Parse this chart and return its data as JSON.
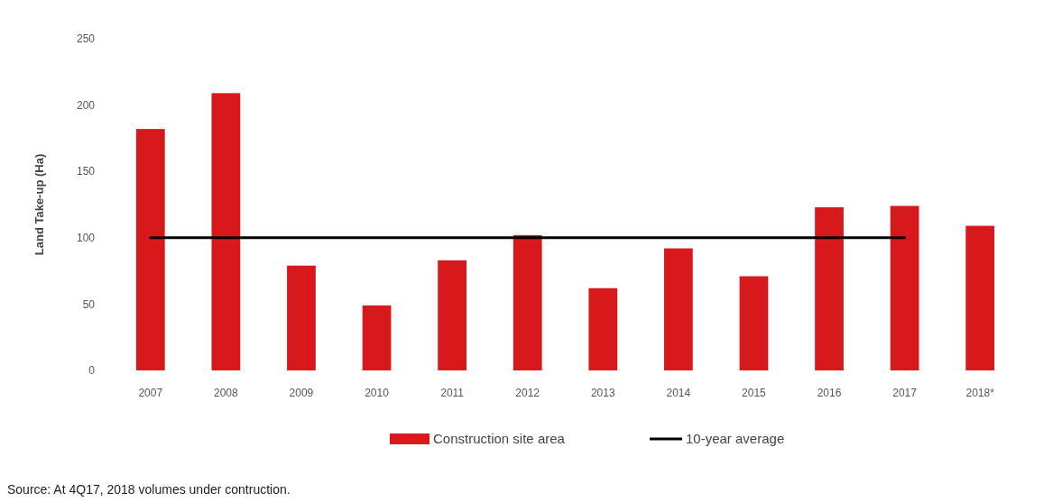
{
  "chart_data": {
    "type": "bar",
    "ylabel": "Land Take-up (Ha)",
    "categories": [
      "2007",
      "2008",
      "2009",
      "2010",
      "2011",
      "2012",
      "2013",
      "2014",
      "2015",
      "2016",
      "2017",
      "2018*"
    ],
    "series": [
      {
        "name": "Construction site area",
        "color": "#d7191c",
        "values": [
          182,
          209,
          79,
          49,
          83,
          102,
          62,
          92,
          71,
          123,
          124,
          109
        ]
      },
      {
        "name": "10-year average",
        "type": "line",
        "color": "#000000",
        "values": [
          100,
          100,
          100,
          100,
          100,
          100,
          100,
          100,
          100,
          100,
          100,
          null
        ]
      }
    ],
    "ylim": [
      0,
      250
    ],
    "yticks": [
      0,
      50,
      100,
      150,
      200,
      250
    ],
    "grid": false,
    "legend": "bottom",
    "annotations": [
      "Source: At 4Q17, 2018 volumes under contruction."
    ]
  }
}
